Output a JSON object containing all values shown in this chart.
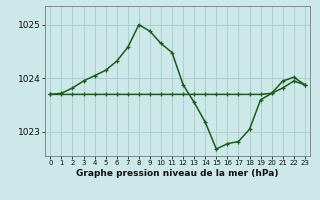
{
  "title": "Graphe pression niveau de la mer (hPa)",
  "bg_color": "#cce8e8",
  "grid_color": "#aad0d0",
  "line_color": "#1a5c1a",
  "x_labels": [
    "0",
    "1",
    "2",
    "3",
    "4",
    "5",
    "6",
    "7",
    "8",
    "9",
    "10",
    "11",
    "12",
    "13",
    "14",
    "15",
    "16",
    "17",
    "18",
    "19",
    "20",
    "21",
    "22",
    "23"
  ],
  "y_ticks": [
    1023,
    1024,
    1025
  ],
  "ylim": [
    1022.55,
    1025.35
  ],
  "xlim": [
    -0.5,
    23.5
  ],
  "series1_y": [
    1023.7,
    1023.72,
    1023.82,
    1023.95,
    1024.05,
    1024.15,
    1024.32,
    1024.58,
    1025.0,
    1024.88,
    1024.65,
    1024.48,
    1023.88,
    1023.55,
    1023.18,
    1022.68,
    1022.78,
    1022.82,
    1023.05,
    1023.6,
    1023.72,
    1023.95,
    1024.02,
    1023.88
  ],
  "series2_y": [
    1023.7,
    1023.7,
    1023.7,
    1023.7,
    1023.7,
    1023.7,
    1023.7,
    1023.7,
    1023.7,
    1023.7,
    1023.7,
    1023.7,
    1023.7,
    1023.7,
    1023.7,
    1023.7,
    1023.7,
    1023.7,
    1023.7,
    1023.7,
    1023.72,
    1023.82,
    1023.95,
    1023.88
  ],
  "xlabel_fontsize": 6.5,
  "xlabel_fontweight": "bold",
  "ytick_fontsize": 6.5,
  "xtick_fontsize": 5.0
}
